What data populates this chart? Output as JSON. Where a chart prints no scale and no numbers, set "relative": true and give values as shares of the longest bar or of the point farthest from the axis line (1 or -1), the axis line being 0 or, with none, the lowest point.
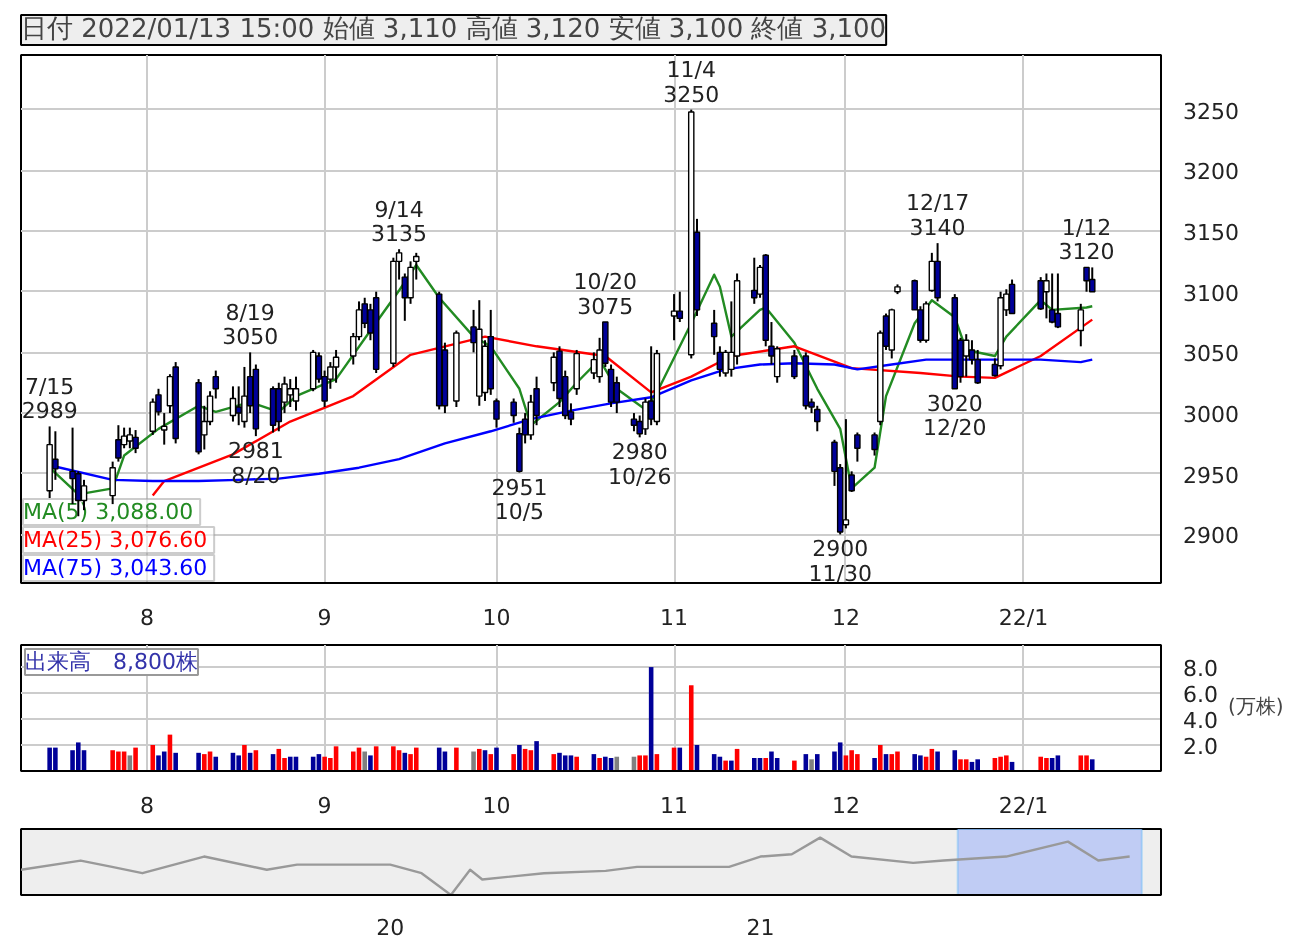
{
  "chart_data": [
    {
      "type": "candlestick",
      "title": "日付 2022/01/13 15:00 始値 3,110 高値 3,120 安値 3,100 終値 3,100",
      "x": [
        "2021-07-15",
        "2021-07-16",
        "2021-07-19",
        "2021-07-20",
        "2021-07-21",
        "2021-07-26",
        "2021-07-27",
        "2021-07-28",
        "2021-07-29",
        "2021-07-30",
        "2021-08-02",
        "2021-08-03",
        "2021-08-04",
        "2021-08-05",
        "2021-08-06",
        "2021-08-10",
        "2021-08-11",
        "2021-08-12",
        "2021-08-13",
        "2021-08-16",
        "2021-08-17",
        "2021-08-18",
        "2021-08-19",
        "2021-08-20",
        "2021-08-23",
        "2021-08-24",
        "2021-08-25",
        "2021-08-26",
        "2021-08-27",
        "2021-08-30",
        "2021-08-31",
        "2021-09-01",
        "2021-09-02",
        "2021-09-03",
        "2021-09-06",
        "2021-09-07",
        "2021-09-08",
        "2021-09-09",
        "2021-09-10",
        "2021-09-13",
        "2021-09-14",
        "2021-09-15",
        "2021-09-16",
        "2021-09-17",
        "2021-09-21",
        "2021-09-22",
        "2021-09-24",
        "2021-09-27",
        "2021-09-28",
        "2021-09-29",
        "2021-09-30",
        "2021-10-01",
        "2021-10-04",
        "2021-10-05",
        "2021-10-06",
        "2021-10-07",
        "2021-10-08",
        "2021-10-11",
        "2021-10-12",
        "2021-10-13",
        "2021-10-14",
        "2021-10-15",
        "2021-10-18",
        "2021-10-19",
        "2021-10-20",
        "2021-10-21",
        "2021-10-22",
        "2021-10-25",
        "2021-10-26",
        "2021-10-27",
        "2021-10-28",
        "2021-10-29",
        "2021-11-01",
        "2021-11-02",
        "2021-11-04",
        "2021-11-05",
        "2021-11-08",
        "2021-11-09",
        "2021-11-10",
        "2021-11-11",
        "2021-11-12",
        "2021-11-15",
        "2021-11-16",
        "2021-11-17",
        "2021-11-18",
        "2021-11-19",
        "2021-11-22",
        "2021-11-24",
        "2021-11-25",
        "2021-11-26",
        "2021-11-29",
        "2021-11-30",
        "2021-12-01",
        "2021-12-02",
        "2021-12-03",
        "2021-12-06",
        "2021-12-07",
        "2021-12-08",
        "2021-12-09",
        "2021-12-10",
        "2021-12-13",
        "2021-12-14",
        "2021-12-15",
        "2021-12-16",
        "2021-12-17",
        "2021-12-20",
        "2021-12-21",
        "2021-12-22",
        "2021-12-23",
        "2021-12-24",
        "2021-12-27",
        "2021-12-28",
        "2021-12-29",
        "2021-12-30",
        "2022-01-04",
        "2022-01-05",
        "2022-01-06",
        "2022-01-07",
        "2022-01-11",
        "2022-01-12",
        "2022-01-13"
      ],
      "ohlc": [
        [
          2936,
          2989,
          2930,
          2974
        ],
        [
          2962,
          2985,
          2945,
          2954
        ],
        [
          2952,
          2988,
          2925,
          2946
        ],
        [
          2950,
          2952,
          2915,
          2928
        ],
        [
          2928,
          2945,
          2920,
          2940
        ],
        [
          2932,
          2960,
          2925,
          2955
        ],
        [
          2978,
          2990,
          2960,
          2963
        ],
        [
          2974,
          2988,
          2971,
          2981
        ],
        [
          2977,
          2988,
          2971,
          2982
        ],
        [
          2980,
          2986,
          2967,
          2971
        ],
        [
          2985,
          3012,
          2982,
          3009
        ],
        [
          3015,
          3020,
          2998,
          3001
        ],
        [
          2986,
          3000,
          2974,
          2989
        ],
        [
          3006,
          3032,
          3000,
          3030
        ],
        [
          3038,
          3042,
          2975,
          2979
        ],
        [
          3025,
          3028,
          2966,
          2968
        ],
        [
          2982,
          3006,
          2970,
          2993
        ],
        [
          2993,
          3018,
          2990,
          3014
        ],
        [
          3030,
          3035,
          3012,
          3020
        ],
        [
          2998,
          3022,
          2993,
          3012
        ],
        [
          3005,
          3022,
          2990,
          3000
        ],
        [
          2993,
          3038,
          2988,
          3014
        ],
        [
          3030,
          3050,
          3000,
          3006
        ],
        [
          3036,
          3040,
          2981,
          2987
        ],
        [
          3020,
          3022,
          2984,
          2990
        ],
        [
          3020,
          3025,
          2985,
          2993
        ],
        [
          3009,
          3030,
          3000,
          3024
        ],
        [
          3015,
          3028,
          3005,
          3020
        ],
        [
          3010,
          3030,
          3002,
          3020
        ],
        [
          3020,
          3052,
          3018,
          3050
        ],
        [
          3047,
          3050,
          3025,
          3028
        ],
        [
          3030,
          3035,
          3005,
          3010
        ],
        [
          3028,
          3042,
          3020,
          3038
        ],
        [
          3038,
          3052,
          3025,
          3046
        ],
        [
          3047,
          3066,
          3040,
          3063
        ],
        [
          3063,
          3092,
          3060,
          3085
        ],
        [
          3090,
          3095,
          3070,
          3074
        ],
        [
          3085,
          3090,
          3060,
          3066
        ],
        [
          3095,
          3100,
          3033,
          3036
        ],
        [
          3041,
          3128,
          3038,
          3125
        ],
        [
          3125,
          3135,
          3110,
          3132
        ],
        [
          3112,
          3115,
          3076,
          3095
        ],
        [
          3095,
          3125,
          3090,
          3120
        ],
        [
          3125,
          3132,
          3110,
          3129
        ],
        [
          3098,
          3100,
          3003,
          3006
        ],
        [
          3052,
          3058,
          3000,
          3006
        ],
        [
          3010,
          3068,
          3005,
          3066
        ],
        [
          3071,
          3085,
          3050,
          3058
        ],
        [
          3014,
          3093,
          3006,
          3069
        ],
        [
          3017,
          3060,
          3010,
          3055
        ],
        [
          3063,
          3085,
          3015,
          3020
        ],
        [
          3010,
          3012,
          2988,
          2995
        ],
        [
          3009,
          3012,
          2992,
          2998
        ],
        [
          2983,
          2988,
          2951,
          2952
        ],
        [
          2995,
          3000,
          2975,
          2982
        ],
        [
          2982,
          3015,
          2978,
          3009
        ],
        [
          3020,
          3030,
          2990,
          2998
        ],
        [
          3025,
          3050,
          3018,
          3046
        ],
        [
          3051,
          3055,
          3005,
          3012
        ],
        [
          3030,
          3035,
          2995,
          2998
        ],
        [
          3001,
          3008,
          2990,
          2995
        ],
        [
          3020,
          3052,
          3015,
          3049
        ],
        [
          3033,
          3050,
          3028,
          3044
        ],
        [
          3030,
          3062,
          3025,
          3052
        ],
        [
          3075,
          3075,
          3038,
          3041
        ],
        [
          3036,
          3040,
          3005,
          3009
        ],
        [
          3025,
          3030,
          3000,
          3009
        ],
        [
          2995,
          3000,
          2985,
          2990
        ],
        [
          2993,
          2998,
          2980,
          2983
        ],
        [
          2987,
          3012,
          2982,
          3009
        ],
        [
          3010,
          3055,
          2990,
          2995
        ],
        [
          2993,
          3052,
          2990,
          3049
        ],
        [
          3080,
          3098,
          3060,
          3084
        ],
        [
          3084,
          3100,
          3075,
          3078
        ],
        [
          3048,
          3250,
          3045,
          3248
        ],
        [
          3149,
          3160,
          3080,
          3085
        ],
        [
          3074,
          3085,
          3048,
          3063
        ],
        [
          3050,
          3055,
          3030,
          3036
        ],
        [
          3033,
          3052,
          3030,
          3050
        ],
        [
          3036,
          3092,
          3030,
          3050
        ],
        [
          3047,
          3115,
          3040,
          3109
        ],
        [
          3101,
          3128,
          3090,
          3095
        ],
        [
          3098,
          3122,
          3095,
          3120
        ],
        [
          3130,
          3131,
          3055,
          3060
        ],
        [
          3055,
          3075,
          3040,
          3047
        ],
        [
          3030,
          3055,
          3025,
          3053
        ],
        [
          3047,
          3052,
          3028,
          3030
        ],
        [
          3047,
          3050,
          3003,
          3006
        ],
        [
          3009,
          3012,
          3000,
          3005
        ],
        [
          3003,
          3006,
          2985,
          2993
        ],
        [
          2976,
          2978,
          2940,
          2952
        ],
        [
          2955,
          2958,
          2900,
          2902
        ],
        [
          2908,
          2995,
          2905,
          2912
        ],
        [
          2949,
          2952,
          2935,
          2936
        ],
        [
          2982,
          2984,
          2960,
          2971
        ],
        [
          2982,
          2984,
          2965,
          2970
        ],
        [
          2993,
          3068,
          2990,
          3066
        ],
        [
          3080,
          3082,
          3052,
          3055
        ],
        [
          3052,
          3086,
          3045,
          3085
        ],
        [
          3100,
          3106,
          3098,
          3104
        ],
        [
          3109,
          3110,
          3085,
          3085
        ],
        [
          3085,
          3088,
          3058,
          3060
        ],
        [
          3060,
          3092,
          3058,
          3090
        ],
        [
          3101,
          3132,
          3100,
          3125
        ],
        [
          3125,
          3140,
          3092,
          3095
        ],
        [
          3095,
          3098,
          3020,
          3020
        ],
        [
          3060,
          3062,
          3025,
          3030
        ],
        [
          3047,
          3065,
          3030,
          3060
        ],
        [
          3052,
          3060,
          3040,
          3044
        ],
        [
          3044,
          3052,
          3024,
          3025
        ],
        [
          3040,
          3045,
          3030,
          3031
        ],
        [
          3039,
          3100,
          3036,
          3095
        ],
        [
          3085,
          3102,
          3080,
          3098
        ],
        [
          3106,
          3110,
          3082,
          3082
        ],
        [
          3109,
          3112,
          3085,
          3086
        ],
        [
          3100,
          3115,
          3078,
          3109
        ],
        [
          3085,
          3115,
          3074,
          3075
        ],
        [
          3082,
          3115,
          3070,
          3071
        ],
        [
          3068,
          3090,
          3055,
          3085
        ],
        [
          3120,
          3120,
          3100,
          3109
        ],
        [
          3110,
          3120,
          3100,
          3100
        ]
      ],
      "colors": [
        "#ffffff",
        "#000099",
        "#000099",
        "#000099",
        "#ffffff",
        "#ffffff",
        "#000099",
        "#ffffff",
        "#ffffff",
        "#000099",
        "#ffffff",
        "#000099",
        "#ffffff",
        "#ffffff",
        "#000099",
        "#000099",
        "#ffffff",
        "#ffffff",
        "#000099",
        "#ffffff",
        "#000099",
        "#ffffff",
        "#000099",
        "#000099",
        "#000099",
        "#000099",
        "#ffffff",
        "#ffffff",
        "#ffffff",
        "#ffffff",
        "#000099",
        "#000099",
        "#ffffff",
        "#ffffff",
        "#ffffff",
        "#ffffff",
        "#000099",
        "#000099",
        "#000099",
        "#ffffff",
        "#ffffff",
        "#000099",
        "#ffffff",
        "#ffffff",
        "#000099",
        "#000099",
        "#ffffff",
        "#000099",
        "#ffffff",
        "#ffffff",
        "#000099",
        "#000099",
        "#000099",
        "#000099",
        "#000099",
        "#ffffff",
        "#000099",
        "#ffffff",
        "#000099",
        "#000099",
        "#000099",
        "#ffffff",
        "#ffffff",
        "#ffffff",
        "#000099",
        "#000099",
        "#000099",
        "#000099",
        "#000099",
        "#ffffff",
        "#000099",
        "#ffffff",
        "#ffffff",
        "#000099",
        "#ffffff",
        "#000099",
        "#000099",
        "#000099",
        "#ffffff",
        "#ffffff",
        "#ffffff",
        "#000099",
        "#ffffff",
        "#000099",
        "#000099",
        "#ffffff",
        "#000099",
        "#000099",
        "#000099",
        "#000099",
        "#000099",
        "#000099",
        "#ffffff",
        "#000099",
        "#000099",
        "#000099",
        "#ffffff",
        "#000099",
        "#ffffff",
        "#ffffff",
        "#000099",
        "#000099",
        "#ffffff",
        "#ffffff",
        "#000099",
        "#000099",
        "#000099",
        "#ffffff",
        "#000099",
        "#000099",
        "#000099",
        "#ffffff",
        "#ffffff",
        "#000099",
        "#000099",
        "#ffffff",
        "#000099",
        "#000099",
        "#ffffff",
        "#000099",
        "#000099"
      ],
      "series": [
        {
          "name": "MA(5)  3,088.00",
          "type": "line",
          "color": "#228b22",
          "x": [
            "2021-07-15",
            "2021-07-20",
            "2021-07-26",
            "2021-07-28",
            "2021-08-03",
            "2021-08-10",
            "2021-08-13",
            "2021-08-19",
            "2021-08-24",
            "2021-08-27",
            "2021-09-03",
            "2021-09-09",
            "2021-09-14",
            "2021-09-17",
            "2021-09-21",
            "2021-09-27",
            "2021-09-30",
            "2021-10-05",
            "2021-10-07",
            "2021-10-12",
            "2021-10-15",
            "2021-10-19",
            "2021-10-22",
            "2021-10-27",
            "2021-10-29",
            "2021-11-04",
            "2021-11-08",
            "2021-11-09",
            "2021-11-11",
            "2021-11-16",
            "2021-11-17",
            "2021-11-22",
            "2021-11-26",
            "2021-11-30",
            "2021-12-02",
            "2021-12-06",
            "2021-12-08",
            "2021-12-13",
            "2021-12-16",
            "2021-12-20",
            "2021-12-22",
            "2021-12-27",
            "2021-12-29",
            "2022-01-04",
            "2022-01-06",
            "2022-01-12",
            "2022-01-13"
          ],
          "values": [
            2955,
            2933,
            2938,
            2965,
            2987,
            3006,
            3001,
            3009,
            3001,
            3014,
            3028,
            3068,
            3101,
            3122,
            3095,
            3063,
            3055,
            3020,
            2990,
            3009,
            3025,
            3044,
            3020,
            3003,
            3017,
            3074,
            3114,
            3104,
            3063,
            3085,
            3087,
            3058,
            3020,
            2987,
            2938,
            2955,
            3014,
            3074,
            3093,
            3079,
            3052,
            3047,
            3063,
            3093,
            3085,
            3087,
            3088
          ]
        },
        {
          "name": "MA(25)  3,076.60",
          "type": "line",
          "color": "#ff0000",
          "x": [
            "2021-08-02",
            "2021-08-04",
            "2021-08-16",
            "2021-08-26",
            "2021-09-06",
            "2021-09-16",
            "2021-09-29",
            "2021-10-08",
            "2021-10-20",
            "2021-10-28",
            "2021-11-04",
            "2021-11-11",
            "2021-11-22",
            "2021-12-02",
            "2021-12-14",
            "2021-12-21",
            "2021-12-27",
            "2022-01-04",
            "2022-01-13"
          ],
          "values": [
            2932,
            2944,
            2966,
            2993,
            3014,
            3048,
            3063,
            3055,
            3047,
            3017,
            3030,
            3047,
            3055,
            3037,
            3033,
            3030,
            3029,
            3047,
            3077
          ]
        },
        {
          "name": "MA(75)  3,043.60",
          "type": "line",
          "color": "#0000ff",
          "x": [
            "2021-07-15",
            "2021-07-26",
            "2021-08-02",
            "2021-08-10",
            "2021-08-17",
            "2021-08-24",
            "2021-08-31",
            "2021-09-07",
            "2021-09-14",
            "2021-09-22",
            "2021-09-30",
            "2021-10-07",
            "2021-10-14",
            "2021-10-21",
            "2021-10-28",
            "2021-11-04",
            "2021-11-10",
            "2021-11-16",
            "2021-11-22",
            "2021-11-29",
            "2021-12-03",
            "2021-12-09",
            "2021-12-15",
            "2021-12-21",
            "2021-12-27",
            "2022-01-04",
            "2022-01-11",
            "2022-01-13"
          ],
          "values": [
            2957,
            2945,
            2944,
            2944,
            2945,
            2946,
            2950,
            2955,
            2962,
            2975,
            2985,
            2995,
            3002,
            3008,
            3013,
            3027,
            3036,
            3040,
            3041,
            3040,
            3036,
            3040,
            3044,
            3044,
            3044,
            3044,
            3042,
            3044
          ]
        }
      ],
      "annotations": [
        {
          "text": "7/15\n2989",
          "x": "2021-07-15",
          "y": 2989
        },
        {
          "text": "8/19\n3050",
          "x": "2021-08-19",
          "y": 3050
        },
        {
          "text": "2981\n8/20",
          "x": "2021-08-20",
          "y": 2981
        },
        {
          "text": "9/14\n3135",
          "x": "2021-09-14",
          "y": 3135
        },
        {
          "text": "2951\n10/5",
          "x": "2021-10-05",
          "y": 2951
        },
        {
          "text": "10/20\n3075",
          "x": "2021-10-20",
          "y": 3075
        },
        {
          "text": "2980\n10/26",
          "x": "2021-10-26",
          "y": 2980
        },
        {
          "text": "11/4\n3250",
          "x": "2021-11-04",
          "y": 3250
        },
        {
          "text": "2900\n11/30",
          "x": "2021-11-30",
          "y": 2900
        },
        {
          "text": "12/17\n3140",
          "x": "2021-12-17",
          "y": 3140
        },
        {
          "text": "3020\n12/20",
          "x": "2021-12-20",
          "y": 3020
        },
        {
          "text": "1/12\n3120",
          "x": "2022-01-12",
          "y": 3120
        }
      ],
      "ylim": [
        2860,
        3295
      ],
      "yticks": [
        2900,
        2950,
        3000,
        3050,
        3100,
        3150,
        3200,
        3250
      ],
      "xlim": [
        "2021-07-10",
        "2022-01-25"
      ],
      "xticks": [
        {
          "value": "2021-08",
          "label": "8"
        },
        {
          "value": "2021-09",
          "label": "9"
        },
        {
          "value": "2021-10",
          "label": "10"
        },
        {
          "value": "2021-11",
          "label": "11"
        },
        {
          "value": "2021-12",
          "label": "12"
        },
        {
          "value": "2022-01",
          "label": "22/1"
        }
      ],
      "grid": true,
      "legend": "bottom left"
    },
    {
      "type": "bar",
      "title": "出来高　8,800株",
      "ylabel": "(万株)",
      "x": [
        "2021-07-15",
        "2021-07-16",
        "2021-07-19",
        "2021-07-20",
        "2021-07-21",
        "2021-07-26",
        "2021-07-27",
        "2021-07-28",
        "2021-07-29",
        "2021-07-30",
        "2021-08-02",
        "2021-08-03",
        "2021-08-04",
        "2021-08-05",
        "2021-08-06",
        "2021-08-10",
        "2021-08-11",
        "2021-08-12",
        "2021-08-13",
        "2021-08-16",
        "2021-08-17",
        "2021-08-18",
        "2021-08-19",
        "2021-08-20",
        "2021-08-23",
        "2021-08-24",
        "2021-08-25",
        "2021-08-26",
        "2021-08-27",
        "2021-08-30",
        "2021-08-31",
        "2021-09-01",
        "2021-09-02",
        "2021-09-03",
        "2021-09-06",
        "2021-09-07",
        "2021-09-08",
        "2021-09-09",
        "2021-09-10",
        "2021-09-13",
        "2021-09-14",
        "2021-09-15",
        "2021-09-16",
        "2021-09-17",
        "2021-09-21",
        "2021-09-22",
        "2021-09-24",
        "2021-09-27",
        "2021-09-28",
        "2021-09-29",
        "2021-09-30",
        "2021-10-01",
        "2021-10-04",
        "2021-10-05",
        "2021-10-06",
        "2021-10-07",
        "2021-10-08",
        "2021-10-11",
        "2021-10-12",
        "2021-10-13",
        "2021-10-14",
        "2021-10-15",
        "2021-10-18",
        "2021-10-19",
        "2021-10-20",
        "2021-10-21",
        "2021-10-22",
        "2021-10-25",
        "2021-10-26",
        "2021-10-27",
        "2021-10-28",
        "2021-10-29",
        "2021-11-01",
        "2021-11-02",
        "2021-11-04",
        "2021-11-05",
        "2021-11-08",
        "2021-11-09",
        "2021-11-10",
        "2021-11-11",
        "2021-11-12",
        "2021-11-15",
        "2021-11-16",
        "2021-11-17",
        "2021-11-18",
        "2021-11-19",
        "2021-11-22",
        "2021-11-24",
        "2021-11-25",
        "2021-11-26",
        "2021-11-29",
        "2021-11-30",
        "2021-12-01",
        "2021-12-02",
        "2021-12-03",
        "2021-12-06",
        "2021-12-07",
        "2021-12-08",
        "2021-12-09",
        "2021-12-10",
        "2021-12-13",
        "2021-12-14",
        "2021-12-15",
        "2021-12-16",
        "2021-12-17",
        "2021-12-20",
        "2021-12-21",
        "2021-12-22",
        "2021-12-23",
        "2021-12-24",
        "2021-12-27",
        "2021-12-28",
        "2021-12-29",
        "2021-12-30",
        "2022-01-04",
        "2022-01-05",
        "2022-01-06",
        "2022-01-07",
        "2022-01-11",
        "2022-01-12",
        "2022-01-13"
      ],
      "values": [
        1.8,
        1.8,
        1.6,
        2.2,
        1.6,
        1.6,
        1.5,
        1.5,
        1.2,
        1.8,
        2.0,
        1.2,
        1.5,
        2.8,
        1.4,
        1.4,
        1.3,
        1.5,
        1.1,
        1.4,
        1.2,
        2.0,
        1.4,
        1.6,
        1.3,
        1.7,
        1.0,
        1.1,
        1.1,
        1.1,
        1.3,
        1.1,
        1.0,
        1.9,
        1.5,
        1.8,
        1.5,
        1.2,
        1.9,
        1.9,
        1.6,
        1.4,
        1.3,
        1.8,
        1.8,
        1.5,
        1.8,
        1.5,
        1.7,
        1.6,
        1.3,
        1.8,
        1.3,
        2.0,
        1.7,
        1.6,
        2.3,
        1.3,
        1.4,
        1.2,
        1.2,
        1.1,
        1.3,
        1.0,
        1.1,
        1.0,
        1.1,
        1.1,
        1.2,
        1.2,
        8.0,
        1.3,
        1.8,
        1.8,
        6.6,
        2.0,
        1.3,
        1.1,
        0.8,
        0.8,
        1.7,
        1.0,
        1.0,
        1.0,
        1.5,
        1.0,
        0.8,
        1.3,
        0.9,
        1.3,
        1.5,
        2.2,
        1.2,
        1.6,
        1.3,
        1.0,
        2.0,
        1.3,
        1.3,
        1.5,
        1.3,
        1.2,
        1.1,
        1.7,
        1.5,
        1.6,
        0.9,
        0.9,
        0.7,
        0.9,
        1.0,
        1.1,
        1.2,
        0.7,
        1.1,
        1.0,
        1.0,
        1.2,
        1.2,
        1.2,
        0.9
      ],
      "colors": [
        "#000099",
        "#000099",
        "#000099",
        "#000099",
        "#000099",
        "#ff0000",
        "#ff0000",
        "#ff0000",
        "#808080",
        "#ff0000",
        "#ff0000",
        "#000099",
        "#000099",
        "#ff0000",
        "#000099",
        "#000099",
        "#ff0000",
        "#ff0000",
        "#000099",
        "#000099",
        "#000099",
        "#ff0000",
        "#000099",
        "#ff0000",
        "#000099",
        "#ff0000",
        "#ff0000",
        "#000099",
        "#000099",
        "#000099",
        "#000099",
        "#ff0000",
        "#ff0000",
        "#ff0000",
        "#ff0000",
        "#ff0000",
        "#808080",
        "#000099",
        "#ff0000",
        "#ff0000",
        "#ff0000",
        "#000099",
        "#ff0000",
        "#ff0000",
        "#000099",
        "#000099",
        "#ff0000",
        "#808080",
        "#ff0000",
        "#000099",
        "#ff0000",
        "#000099",
        "#ff0000",
        "#000099",
        "#ff0000",
        "#ff0000",
        "#000099",
        "#ff0000",
        "#000099",
        "#000099",
        "#000099",
        "#ff0000",
        "#000099",
        "#ff0000",
        "#000099",
        "#000099",
        "#808080",
        "#808080",
        "#ff0000",
        "#ff0000",
        "#000099",
        "#ff0000",
        "#ff0000",
        "#000099",
        "#ff0000",
        "#000099",
        "#000099",
        "#000099",
        "#ff0000",
        "#000099",
        "#ff0000",
        "#000099",
        "#000099",
        "#ff0000",
        "#000099",
        "#000099",
        "#ff0000",
        "#000099",
        "#808080",
        "#000099",
        "#000099",
        "#000099",
        "#ff0000",
        "#ff0000",
        "#ff0000",
        "#000099",
        "#ff0000",
        "#000099",
        "#ff0000",
        "#ff0000",
        "#000099",
        "#000099",
        "#ff0000",
        "#ff0000",
        "#000099",
        "#000099",
        "#ff0000",
        "#ff0000",
        "#000099",
        "#000099",
        "#ff0000",
        "#ff0000",
        "#ff0000",
        "#000099",
        "#ff0000",
        "#ff0000",
        "#000099",
        "#000099",
        "#ff0000",
        "#ff0000",
        "#000099"
      ],
      "ylim": [
        0,
        9.7
      ],
      "yticks": [
        {
          "value": 2,
          "label": "2.0"
        },
        {
          "value": 4,
          "label": "4.0"
        },
        {
          "value": 6,
          "label": "6.0"
        },
        {
          "value": 8,
          "label": "8.0"
        }
      ],
      "xlim": [
        "2021-07-10",
        "2022-01-25"
      ],
      "xticks": [
        {
          "value": "2021-08",
          "label": "8"
        },
        {
          "value": "2021-09",
          "label": "9"
        },
        {
          "value": "2021-10",
          "label": "10"
        },
        {
          "value": "2021-11",
          "label": "11"
        },
        {
          "value": "2021-12",
          "label": "12"
        },
        {
          "value": "2022-01",
          "label": "22/1"
        }
      ],
      "grid": true
    },
    {
      "type": "line",
      "relative": true,
      "x": [
        "2019-01",
        "2019-03",
        "2019-04",
        "2019-05",
        "2019-07",
        "2019-09",
        "2019-10",
        "2019-12",
        "2020-01",
        "2020-02",
        "2020-03",
        "2020-03-20",
        "2020-04",
        "2020-06",
        "2020-08",
        "2020-09",
        "2020-12",
        "2021-01",
        "2021-02",
        "2021-03",
        "2021-04",
        "2021-06",
        "2021-07",
        "2021-09",
        "2021-11",
        "2021-12",
        "2022-01"
      ],
      "series": [
        {
          "color": "#999999",
          "values": [
            0.44,
            0.6,
            0.49,
            0.38,
            0.67,
            0.44,
            0.53,
            0.53,
            0.53,
            0.38,
            0,
            0.44,
            0.27,
            0.38,
            0.42,
            0.49,
            0.49,
            0.67,
            0.71,
            1.0,
            0.67,
            0.56,
            0.6,
            0.67,
            0.93,
            0.6,
            0.67
          ]
        }
      ],
      "xlim": [
        "2019-01",
        "2022-02"
      ],
      "xticks": [
        {
          "value": "2020-01",
          "label": "20"
        },
        {
          "value": "2021-01",
          "label": "21"
        }
      ],
      "bands": [
        {
          "axis": "x",
          "from": "2021-07-15",
          "to": "2022-01-13",
          "color": "#b4c3f5"
        }
      ]
    }
  ]
}
